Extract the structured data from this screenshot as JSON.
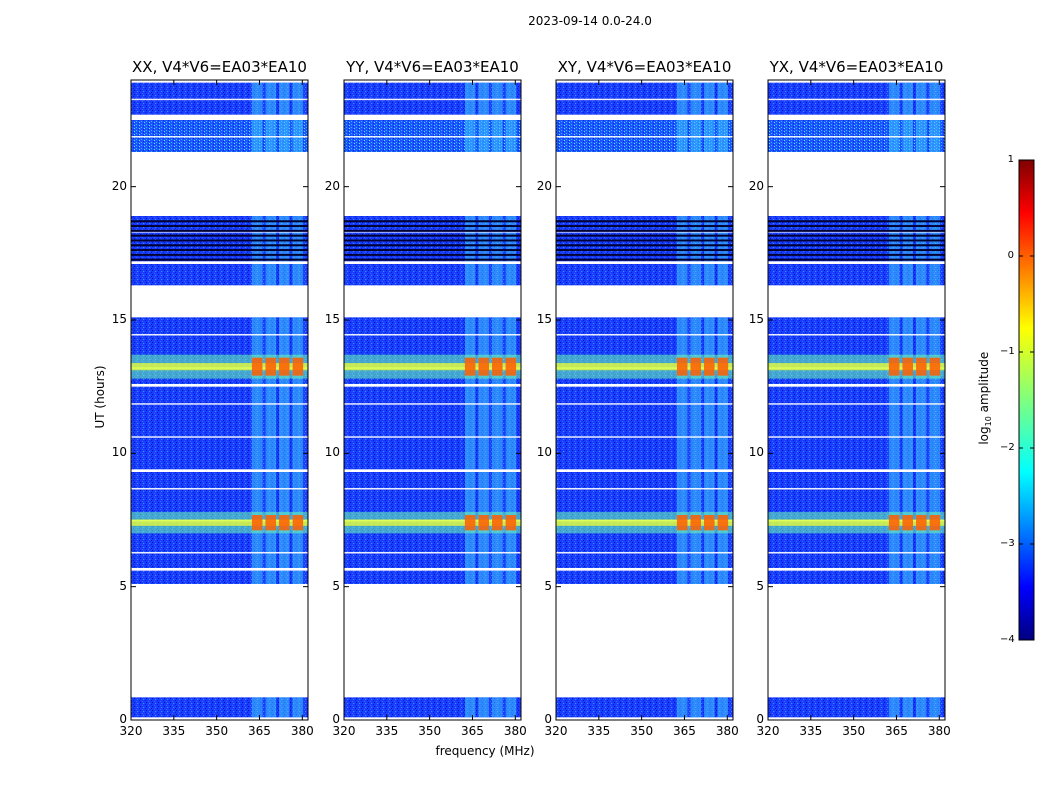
{
  "chart_data": {
    "type": "heatmap",
    "title": "2023-09-14 0.0-24.0",
    "xlabel": "frequency (MHz)",
    "ylabel": "UT (hours)",
    "xlim": [
      320,
      382
    ],
    "ylim": [
      0,
      24
    ],
    "xticks": [
      "320",
      "335",
      "350",
      "365",
      "380"
    ],
    "yticks": [
      "0",
      "5",
      "10",
      "15",
      "20"
    ],
    "colorbar": {
      "label_prefix": "log",
      "label_sub": "10",
      "label_suffix": " amplitude",
      "range": [
        -4,
        1
      ],
      "ticks": [
        "1",
        "0",
        "−1",
        "−2",
        "−3",
        "−4"
      ]
    },
    "panels": [
      {
        "title": "XX, V4*V6=EA03*EA10"
      },
      {
        "title": "YY, V4*V6=EA03*EA10"
      },
      {
        "title": "XY, V4*V6=EA03*EA10"
      },
      {
        "title": "YX, V4*V6=EA03*EA10"
      }
    ],
    "data_segments_hours": [
      [
        0.1,
        0.85
      ],
      [
        5.1,
        5.6
      ],
      [
        5.7,
        9.3
      ],
      [
        9.4,
        12.5
      ],
      [
        12.6,
        15.1
      ],
      [
        16.3,
        17.1
      ],
      [
        17.2,
        18.9
      ],
      [
        21.3,
        22.5
      ],
      [
        22.7,
        23.9
      ]
    ],
    "bright_bands_hours": [
      [
        7.0,
        7.8
      ],
      [
        12.8,
        13.7
      ]
    ],
    "rfi_band_mhz": [
      362,
      381
    ]
  }
}
